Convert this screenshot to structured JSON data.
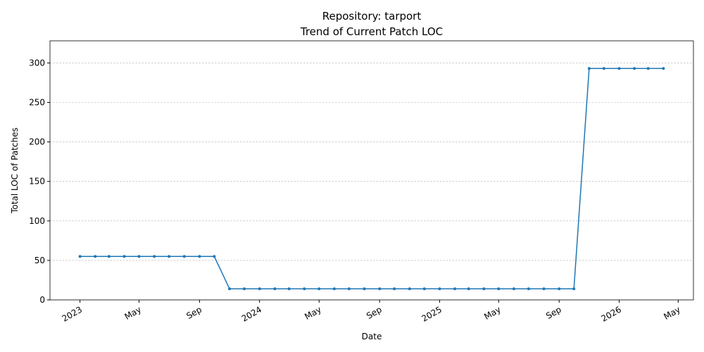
{
  "chart_data": {
    "type": "line",
    "title": "Repository: tarport",
    "subtitle": "Trend of Current Patch LOC",
    "x_label": "Date",
    "y_label": "Total LOC of Patches",
    "x": [
      "2023-01",
      "2023-02",
      "2023-03",
      "2023-04",
      "2023-05",
      "2023-06",
      "2023-07",
      "2023-08",
      "2023-09",
      "2023-10",
      "2023-11",
      "2023-12",
      "2024-01",
      "2024-02",
      "2024-03",
      "2024-04",
      "2024-05",
      "2024-06",
      "2024-07",
      "2024-08",
      "2024-09",
      "2024-10",
      "2024-11",
      "2024-12",
      "2025-01",
      "2025-02",
      "2025-03",
      "2025-04",
      "2025-05",
      "2025-06",
      "2025-07",
      "2025-08",
      "2025-09",
      "2025-10",
      "2025-11",
      "2025-12",
      "2026-01",
      "2026-02",
      "2026-03",
      "2026-04"
    ],
    "series": [
      {
        "name": "Total LOC",
        "color": "#1f77b4",
        "values": [
          55,
          55,
          55,
          55,
          55,
          55,
          55,
          55,
          55,
          55,
          14,
          14,
          14,
          14,
          14,
          14,
          14,
          14,
          14,
          14,
          14,
          14,
          14,
          14,
          14,
          14,
          14,
          14,
          14,
          14,
          14,
          14,
          14,
          14,
          293,
          293,
          293,
          293,
          293,
          293
        ]
      }
    ],
    "xlim": [
      "2022-11",
      "2026-06"
    ],
    "xticks": [
      {
        "value": "2023-01",
        "label": "2023"
      },
      {
        "value": "2023-05",
        "label": "May"
      },
      {
        "value": "2023-09",
        "label": "Sep"
      },
      {
        "value": "2024-01",
        "label": "2024"
      },
      {
        "value": "2024-05",
        "label": "May"
      },
      {
        "value": "2024-09",
        "label": "Sep"
      },
      {
        "value": "2025-01",
        "label": "2025"
      },
      {
        "value": "2025-05",
        "label": "May"
      },
      {
        "value": "2025-09",
        "label": "Sep"
      },
      {
        "value": "2026-01",
        "label": "2026"
      },
      {
        "value": "2026-05",
        "label": "May"
      }
    ],
    "ylim": [
      0,
      328
    ],
    "yticks": [
      0,
      50,
      100,
      150,
      200,
      250,
      300
    ],
    "grid": true
  }
}
